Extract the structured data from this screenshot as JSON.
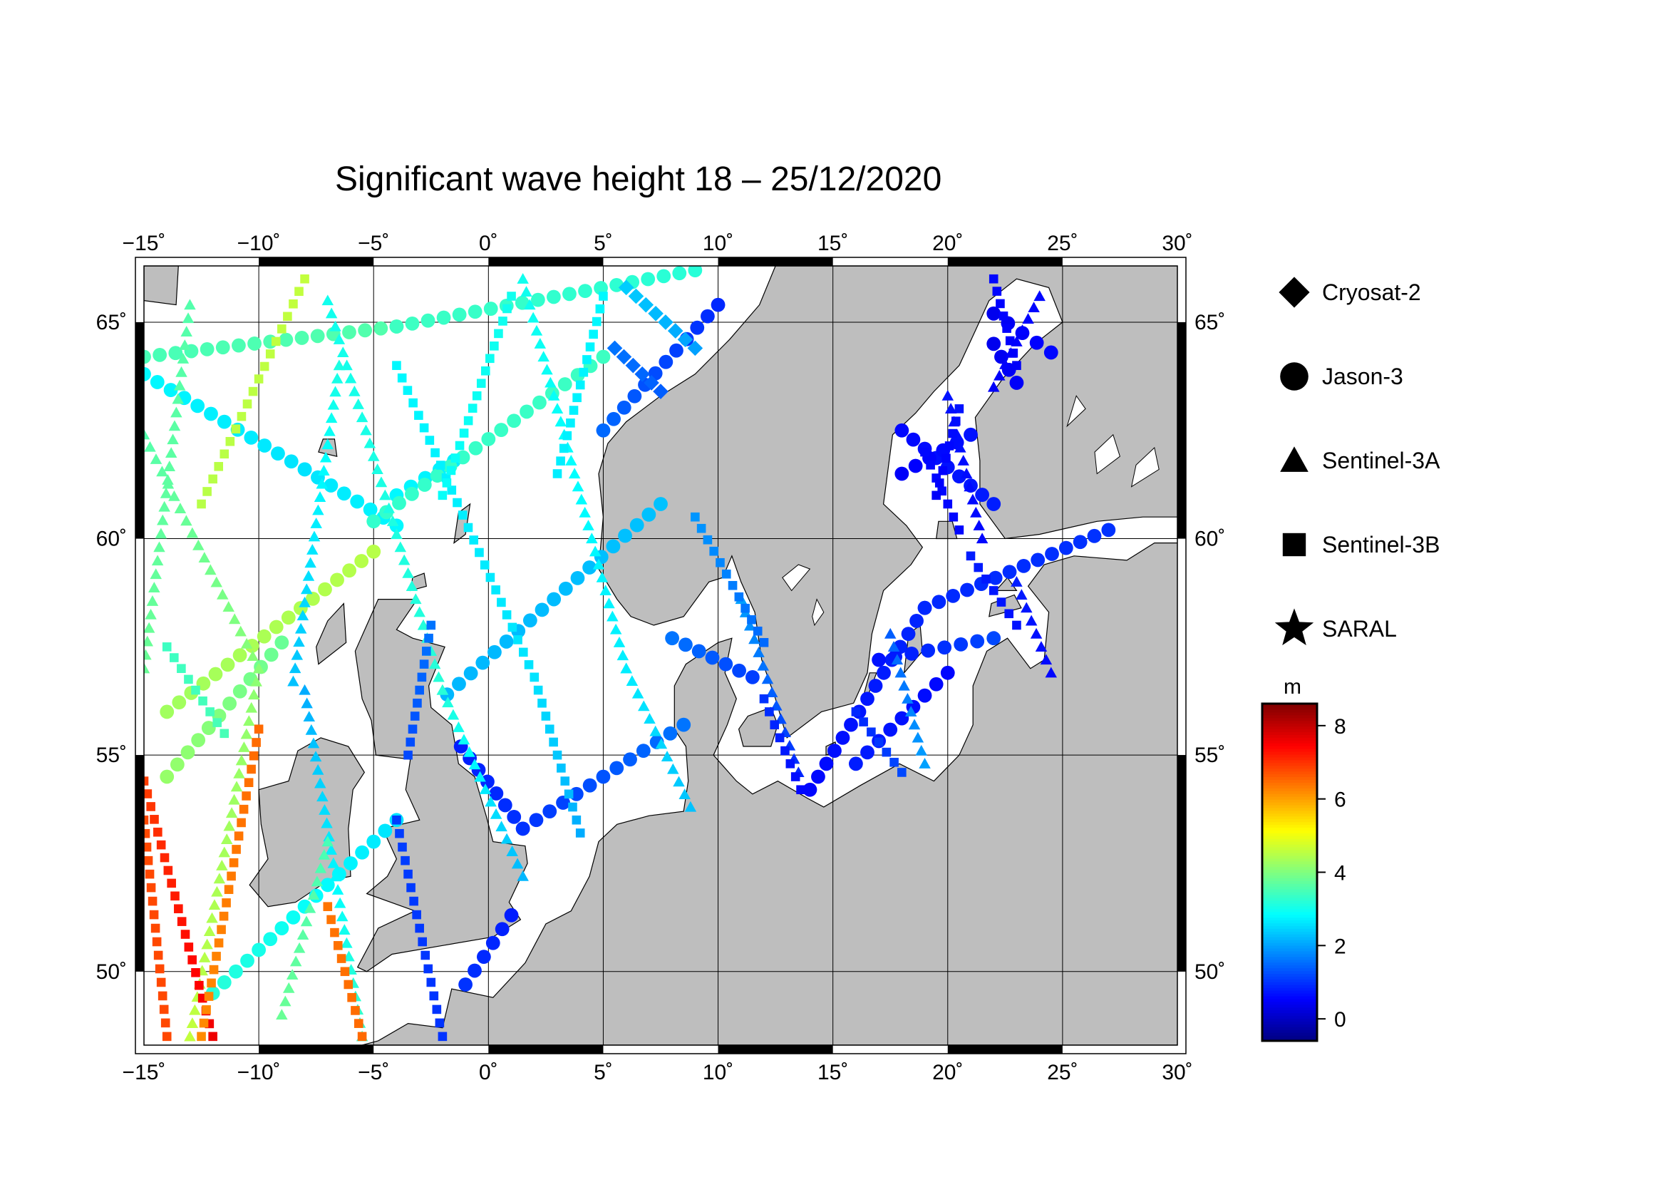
{
  "title": "Significant wave height 18 – 25/12/2020",
  "map": {
    "lon_range": [
      -15,
      30
    ],
    "lat_range": [
      48.3,
      66.3
    ],
    "lon_ticks": [
      -15,
      -10,
      -5,
      0,
      5,
      10,
      15,
      20,
      25,
      30
    ],
    "lat_ticks": [
      50,
      55,
      60,
      65
    ],
    "lon_tick_labels": [
      "−15˚",
      "−10˚",
      "−5˚",
      "0˚",
      "5˚",
      "10˚",
      "15˚",
      "20˚",
      "25˚",
      "30˚"
    ],
    "lat_tick_labels": [
      "50˚",
      "55˚",
      "60˚",
      "65˚"
    ],
    "land_color": "#bebebe",
    "sea_color": "#ffffff",
    "grid": true
  },
  "legend": {
    "items": [
      {
        "label": "Cryosat-2",
        "symbol": "diamond"
      },
      {
        "label": "Jason-3",
        "symbol": "circle"
      },
      {
        "label": "Sentinel-3A",
        "symbol": "triangle"
      },
      {
        "label": "Sentinel-3B",
        "symbol": "square"
      },
      {
        "label": "SARAL",
        "symbol": "star"
      }
    ]
  },
  "colorbar": {
    "unit": "m",
    "min": -0.6,
    "max": 8.6,
    "ticks": [
      0,
      2,
      4,
      6,
      8
    ],
    "tick_labels": [
      "0",
      "2",
      "4",
      "6",
      "8"
    ],
    "colormap": "jet"
  },
  "chart_data": {
    "type": "scatter",
    "x_label": "",
    "y_label": "",
    "series": [
      {
        "name": "Jason-3",
        "symbol": "circle",
        "tracks": [
          {
            "start": [
              -15,
              64.2
            ],
            "end": [
              -4,
              64.9
            ],
            "h": [
              3.5,
              3.6
            ]
          },
          {
            "start": [
              -4,
              64.9
            ],
            "end": [
              9,
              66.2
            ],
            "h": [
              3.4,
              3.2
            ]
          },
          {
            "start": [
              -15,
              63.8
            ],
            "end": [
              -8,
              61.6
            ],
            "h": [
              2.8,
              2.6
            ]
          },
          {
            "start": [
              -8,
              61.6
            ],
            "end": [
              -4,
              60.3
            ],
            "h": [
              2.6,
              2.8
            ]
          },
          {
            "start": [
              -4,
              61.0
            ],
            "end": [
              -1.5,
              61.8
            ],
            "h": [
              2.8,
              2.7
            ]
          },
          {
            "start": [
              -5,
              60.4
            ],
            "end": [
              5,
              64.2
            ],
            "h": [
              3.3,
              3.4
            ]
          },
          {
            "start": [
              -14,
              56.0
            ],
            "end": [
              -5,
              59.7
            ],
            "h": [
              4.3,
              4.5
            ]
          },
          {
            "start": [
              -14,
              54.5
            ],
            "end": [
              -9,
              57.6
            ],
            "h": [
              4.2,
              3.8
            ]
          },
          {
            "start": [
              -12,
              49.5
            ],
            "end": [
              -4,
              53.5
            ],
            "h": [
              3.2,
              2.6
            ]
          },
          {
            "start": [
              -1.8,
              56.4
            ],
            "end": [
              7.5,
              60.8
            ],
            "h": [
              2.2,
              2.3
            ]
          },
          {
            "start": [
              -1.2,
              55.2
            ],
            "end": [
              1.5,
              53.3
            ],
            "h": [
              0.8,
              1.0
            ]
          },
          {
            "start": [
              1.5,
              53.3
            ],
            "end": [
              8.5,
              55.7
            ],
            "h": [
              1.0,
              1.6
            ]
          },
          {
            "start": [
              5,
              62.5
            ],
            "end": [
              10,
              65.4
            ],
            "h": [
              1.5,
              0.9
            ]
          },
          {
            "start": [
              -1,
              49.7
            ],
            "end": [
              1,
              51.3
            ],
            "h": [
              1.0,
              0.8
            ]
          },
          {
            "start": [
              14,
              54.2
            ],
            "end": [
              19,
              58.4
            ],
            "h": [
              0.6,
              0.9
            ]
          },
          {
            "start": [
              19,
              58.4
            ],
            "end": [
              27,
              60.2
            ],
            "h": [
              0.9,
              1.0
            ]
          },
          {
            "start": [
              16,
              54.8
            ],
            "end": [
              20,
              56.9
            ],
            "h": [
              0.8,
              0.6
            ]
          },
          {
            "start": [
              17,
              57.2
            ],
            "end": [
              22,
              57.7
            ],
            "h": [
              0.7,
              1.2
            ]
          },
          {
            "start": [
              18,
              62.5
            ],
            "end": [
              22,
              60.8
            ],
            "h": [
              0.6,
              0.8
            ]
          },
          {
            "start": [
              18,
              61.5
            ],
            "end": [
              21,
              62.4
            ],
            "h": [
              0.5,
              0.7
            ]
          },
          {
            "start": [
              22,
              65.2
            ],
            "end": [
              24.5,
              64.3
            ],
            "h": [
              0.4,
              0.6
            ]
          },
          {
            "start": [
              22,
              64.5
            ],
            "end": [
              23,
              63.6
            ],
            "h": [
              0.4,
              0.5
            ]
          },
          {
            "start": [
              8,
              57.7
            ],
            "end": [
              11.5,
              56.8
            ],
            "h": [
              1.6,
              1.1
            ]
          }
        ]
      },
      {
        "name": "Sentinel-3A",
        "symbol": "triangle",
        "tracks": [
          {
            "start": [
              -15,
              62.4
            ],
            "end": [
              -10,
              57.0
            ],
            "h": [
              3.6,
              4.1
            ]
          },
          {
            "start": [
              -10,
              57.0
            ],
            "end": [
              -13,
              48.5
            ],
            "h": [
              4.1,
              4.6
            ]
          },
          {
            "start": [
              -13,
              65.4
            ],
            "end": [
              -15,
              57.0
            ],
            "h": [
              3.6,
              3.8
            ]
          },
          {
            "start": [
              -7,
              65.5
            ],
            "end": [
              -2,
              56.5
            ],
            "h": [
              3.0,
              3.2
            ]
          },
          {
            "start": [
              -2,
              56.5
            ],
            "end": [
              1.5,
              52.2
            ],
            "h": [
              3.2,
              2.2
            ]
          },
          {
            "start": [
              1.5,
              66.0
            ],
            "end": [
              6,
              57.0
            ],
            "h": [
              3.0,
              2.7
            ]
          },
          {
            "start": [
              6,
              57.0
            ],
            "end": [
              8.8,
              53.8
            ],
            "h": [
              2.7,
              2.3
            ]
          },
          {
            "start": [
              -6.5,
              64.0
            ],
            "end": [
              -8.5,
              56.7
            ],
            "h": [
              3.1,
              2.3
            ]
          },
          {
            "start": [
              -8,
              56.5
            ],
            "end": [
              -5.5,
              48.5
            ],
            "h": [
              2.1,
              3.4
            ]
          },
          {
            "start": [
              11,
              58.6
            ],
            "end": [
              13.5,
              54.6
            ],
            "h": [
              2.0,
              0.9
            ]
          },
          {
            "start": [
              20,
              63.3
            ],
            "end": [
              21.5,
              60.0
            ],
            "h": [
              0.7,
              0.6
            ]
          },
          {
            "start": [
              23,
              59.0
            ],
            "end": [
              24.5,
              56.9
            ],
            "h": [
              0.8,
              0.6
            ]
          },
          {
            "start": [
              24,
              65.6
            ],
            "end": [
              22,
              63.5
            ],
            "h": [
              0.6,
              0.5
            ]
          },
          {
            "start": [
              17.5,
              57.8
            ],
            "end": [
              19,
              54.8
            ],
            "h": [
              1.4,
              2.0
            ]
          },
          {
            "start": [
              -9,
              49.0
            ],
            "end": [
              -7,
              53.0
            ],
            "h": [
              3.8,
              3.5
            ]
          }
        ]
      },
      {
        "name": "Sentinel-3B",
        "symbol": "square",
        "tracks": [
          {
            "start": [
              -14,
              48.5
            ],
            "end": [
              -15,
              53.5
            ],
            "h": [
              6.8,
              6.8
            ]
          },
          {
            "start": [
              -15,
              54.4
            ],
            "end": [
              -12,
              48.5
            ],
            "h": [
              6.9,
              7.6
            ]
          },
          {
            "start": [
              -10,
              55.6
            ],
            "end": [
              -12.5,
              48.5
            ],
            "h": [
              6.5,
              6.2
            ]
          },
          {
            "start": [
              -7,
              51.5
            ],
            "end": [
              -5.5,
              48.5
            ],
            "h": [
              6.4,
              6.5
            ]
          },
          {
            "start": [
              -8,
              66.0
            ],
            "end": [
              -12.5,
              60.8
            ],
            "h": [
              4.6,
              4.5
            ]
          },
          {
            "start": [
              -11.5,
              55.5
            ],
            "end": [
              -14,
              57.5
            ],
            "h": [
              3.5,
              3.4
            ]
          },
          {
            "start": [
              -4,
              64.0
            ],
            "end": [
              2,
              56.8
            ],
            "h": [
              2.8,
              2.6
            ]
          },
          {
            "start": [
              2,
              56.8
            ],
            "end": [
              4,
              53.2
            ],
            "h": [
              2.6,
              2.1
            ]
          },
          {
            "start": [
              1,
              65.6
            ],
            "end": [
              -2,
              61.0
            ],
            "h": [
              3.0,
              2.9
            ]
          },
          {
            "start": [
              5,
              65.6
            ],
            "end": [
              3,
              61.5
            ],
            "h": [
              2.8,
              2.7
            ]
          },
          {
            "start": [
              -4,
              53.5
            ],
            "end": [
              -2,
              48.5
            ],
            "h": [
              1.1,
              1.0
            ]
          },
          {
            "start": [
              9,
              60.5
            ],
            "end": [
              12,
              57.6
            ],
            "h": [
              1.9,
              1.5
            ]
          },
          {
            "start": [
              12,
              56.3
            ],
            "end": [
              13.6,
              54.2
            ],
            "h": [
              1.0,
              0.6
            ]
          },
          {
            "start": [
              16,
              56.0
            ],
            "end": [
              18,
              54.6
            ],
            "h": [
              0.9,
              1.2
            ]
          },
          {
            "start": [
              19,
              62.0
            ],
            "end": [
              20.5,
              60.2
            ],
            "h": [
              0.6,
              0.6
            ]
          },
          {
            "start": [
              20.5,
              63.0
            ],
            "end": [
              19.5,
              61.0
            ],
            "h": [
              0.7,
              0.5
            ]
          },
          {
            "start": [
              22,
              66.0
            ],
            "end": [
              23,
              64.0
            ],
            "h": [
              0.6,
              0.5
            ]
          },
          {
            "start": [
              21,
              59.6
            ],
            "end": [
              23,
              58.0
            ],
            "h": [
              0.8,
              0.7
            ]
          },
          {
            "start": [
              -2.5,
              58.0
            ],
            "end": [
              -3.5,
              55.0
            ],
            "h": [
              1.6,
              1.2
            ]
          }
        ]
      },
      {
        "name": "Cryosat-2",
        "symbol": "diamond",
        "tracks": [
          {
            "start": [
              6,
              65.8
            ],
            "end": [
              9,
              64.4
            ],
            "h": [
              2.4,
              2.0
            ]
          },
          {
            "start": [
              5.5,
              64.4
            ],
            "end": [
              7.5,
              63.4
            ],
            "h": [
              1.6,
              1.4
            ]
          }
        ]
      },
      {
        "name": "SARAL",
        "symbol": "star",
        "tracks": []
      }
    ]
  }
}
